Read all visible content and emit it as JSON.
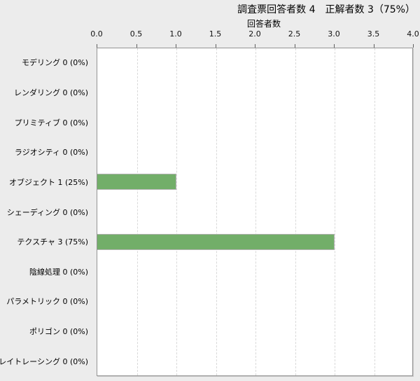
{
  "header": {
    "title": "調査票回答者数 4　正解者数 3（75%）"
  },
  "chart_data": {
    "type": "bar",
    "orientation": "horizontal",
    "title": "調査票回答者数 4　正解者数 3（75%）",
    "xlabel": "回答者数",
    "ylabel": "",
    "xlim": [
      0.0,
      4.0
    ],
    "x_ticks": [
      "0.0",
      "0.5",
      "1.0",
      "1.5",
      "2.0",
      "2.5",
      "3.0",
      "3.5",
      "4.0"
    ],
    "grid": "vertical-dashed",
    "legend": "none",
    "categories": [
      "モデリング",
      "レンダリング",
      "プリミティブ",
      "ラジオシティ",
      "オブジェクト",
      "シェーディング",
      "テクスチャ",
      "陰線処理",
      "パラメトリック",
      "ポリゴン",
      "レイトレーシング"
    ],
    "values": [
      0,
      0,
      0,
      0,
      1,
      0,
      3,
      0,
      0,
      0,
      0
    ],
    "category_labels": [
      "モデリング 0 (0%)",
      "レンダリング 0 (0%)",
      "プリミティブ 0 (0%)",
      "ラジオシティ 0 (0%)",
      "オブジェクト 1 (25%)",
      "シェーディング 0 (0%)",
      "テクスチャ 3 (75%)",
      "陰線処理 0 (0%)",
      "パラメトリック 0 (0%)",
      "ポリゴン 0 (0%)",
      "レイトレーシング 0 (0%)"
    ]
  },
  "colors": {
    "background": "#ececec",
    "plot_background": "#ffffff",
    "plot_border": "#949494",
    "gridline": "#d9d9d9",
    "bar_fill": "#72ae69",
    "bar_outline": "#b3b3b3",
    "text": "#000000"
  }
}
